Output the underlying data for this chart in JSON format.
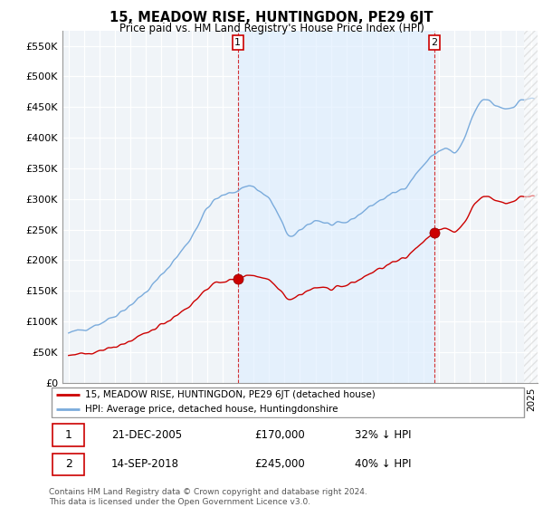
{
  "title": "15, MEADOW RISE, HUNTINGDON, PE29 6JT",
  "subtitle": "Price paid vs. HM Land Registry's House Price Index (HPI)",
  "legend_line1": "15, MEADOW RISE, HUNTINGDON, PE29 6JT (detached house)",
  "legend_line2": "HPI: Average price, detached house, Huntingdonshire",
  "footnote": "Contains HM Land Registry data © Crown copyright and database right 2024.\nThis data is licensed under the Open Government Licence v3.0.",
  "annotation1_date": "21-DEC-2005",
  "annotation1_price": "£170,000",
  "annotation1_hpi": "32% ↓ HPI",
  "annotation2_date": "14-SEP-2018",
  "annotation2_price": "£245,000",
  "annotation2_hpi": "40% ↓ HPI",
  "red_line_color": "#cc0000",
  "blue_line_color": "#7aabdc",
  "shade_color": "#ddeeff",
  "background_color": "#ffffff",
  "grid_color": "#cccccc",
  "ylim": [
    0,
    575000
  ],
  "yticks": [
    0,
    50000,
    100000,
    150000,
    200000,
    250000,
    300000,
    350000,
    400000,
    450000,
    500000,
    550000
  ],
  "ytick_labels": [
    "£0",
    "£50K",
    "£100K",
    "£150K",
    "£200K",
    "£250K",
    "£300K",
    "£350K",
    "£400K",
    "£450K",
    "£500K",
    "£550K"
  ],
  "sale1_x": 2005.97,
  "sale1_y": 170000,
  "sale2_x": 2018.71,
  "sale2_y": 245000,
  "xlim_left": 1994.6,
  "xlim_right": 2025.4
}
